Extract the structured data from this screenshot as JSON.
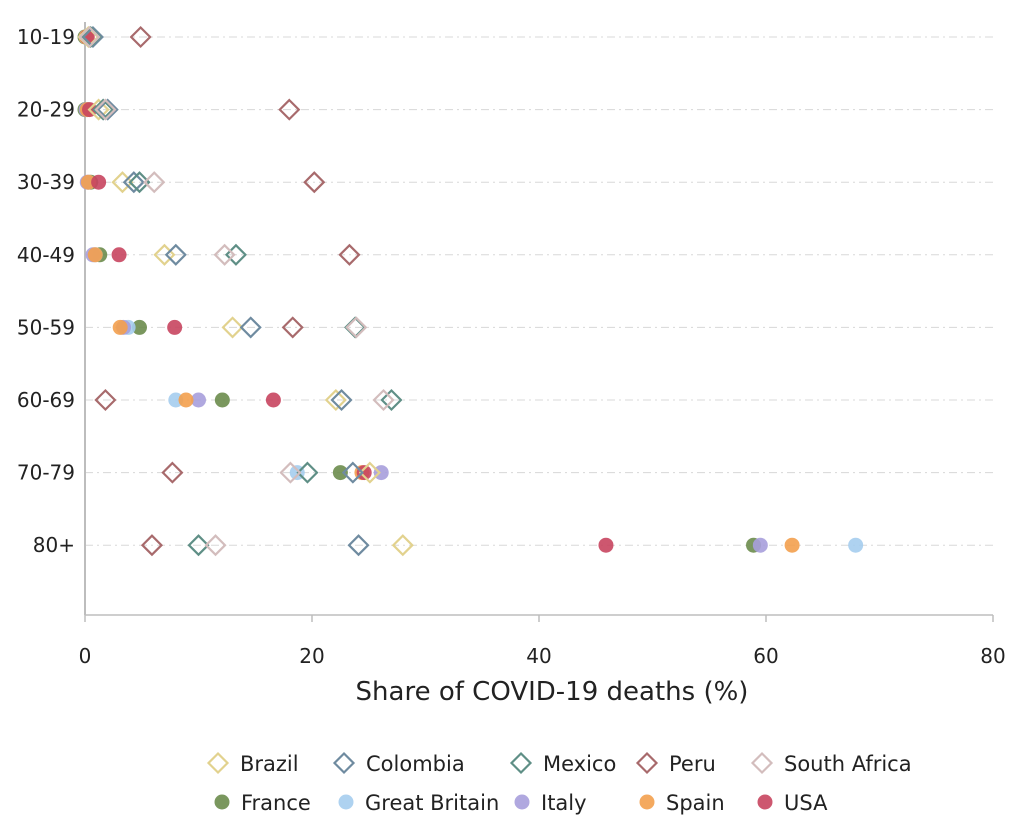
{
  "chart_data": {
    "type": "scatter",
    "title": "",
    "xlabel": "Share of COVID-19 deaths (%)",
    "ylabel": "",
    "xlim": [
      0,
      80
    ],
    "xticks": [
      "0",
      "20",
      "40",
      "60",
      "80"
    ],
    "categories": [
      "10-19",
      "20-29",
      "30-39",
      "40-49",
      "50-59",
      "60-69",
      "70-79",
      "80+"
    ],
    "grid": "horizontal dashed",
    "legend_position": "bottom",
    "series": [
      {
        "name": "France",
        "marker": "circle",
        "color": "#6b8c4c",
        "values": [
          0.0,
          0.0,
          0.5,
          1.3,
          4.8,
          12.1,
          22.5,
          58.9
        ]
      },
      {
        "name": "Great Britain",
        "marker": "circle",
        "color": "#a5cdee",
        "values": [
          0.1,
          0.2,
          0.3,
          0.9,
          3.8,
          8.0,
          18.7,
          67.9
        ]
      },
      {
        "name": "Italy",
        "marker": "circle",
        "color": "#a79fdc",
        "values": [
          0.1,
          0.1,
          0.2,
          0.7,
          3.4,
          10.0,
          26.1,
          59.5
        ]
      },
      {
        "name": "Spain",
        "marker": "circle",
        "color": "#f3a04e",
        "values": [
          0.1,
          0.2,
          0.3,
          0.9,
          3.1,
          8.9,
          24.4,
          62.3
        ]
      },
      {
        "name": "USA",
        "marker": "circle",
        "color": "#c8455f",
        "values": [
          0.2,
          0.4,
          1.2,
          3.0,
          7.9,
          16.6,
          24.6,
          45.9
        ]
      },
      {
        "name": "Brazil",
        "marker": "diamond",
        "color": "#e2d28e",
        "values": [
          0.3,
          1.2,
          3.3,
          7.0,
          13.0,
          22.1,
          25.1,
          28.0
        ]
      },
      {
        "name": "Colombia",
        "marker": "diamond",
        "color": "#6f8ba0",
        "values": [
          0.7,
          2.0,
          4.3,
          8.0,
          14.6,
          22.6,
          23.6,
          24.1
        ]
      },
      {
        "name": "Mexico",
        "marker": "diamond",
        "color": "#5f8f86",
        "values": [
          0.5,
          1.6,
          4.8,
          13.3,
          23.8,
          27.0,
          19.6,
          10.0
        ]
      },
      {
        "name": "Peru",
        "marker": "diamond",
        "color": "#a86a6c",
        "values": [
          4.9,
          18.0,
          20.2,
          23.3,
          18.3,
          1.8,
          7.7,
          5.9
        ]
      },
      {
        "name": "South Africa",
        "marker": "diamond",
        "color": "#d3bdbd",
        "values": [
          0.4,
          1.8,
          6.1,
          12.3,
          23.9,
          26.3,
          18.1,
          11.5
        ]
      }
    ],
    "legend_order": [
      "Brazil",
      "Colombia",
      "Mexico",
      "Peru",
      "South Africa",
      "France",
      "Great Britain",
      "Italy",
      "Spain",
      "USA"
    ]
  }
}
